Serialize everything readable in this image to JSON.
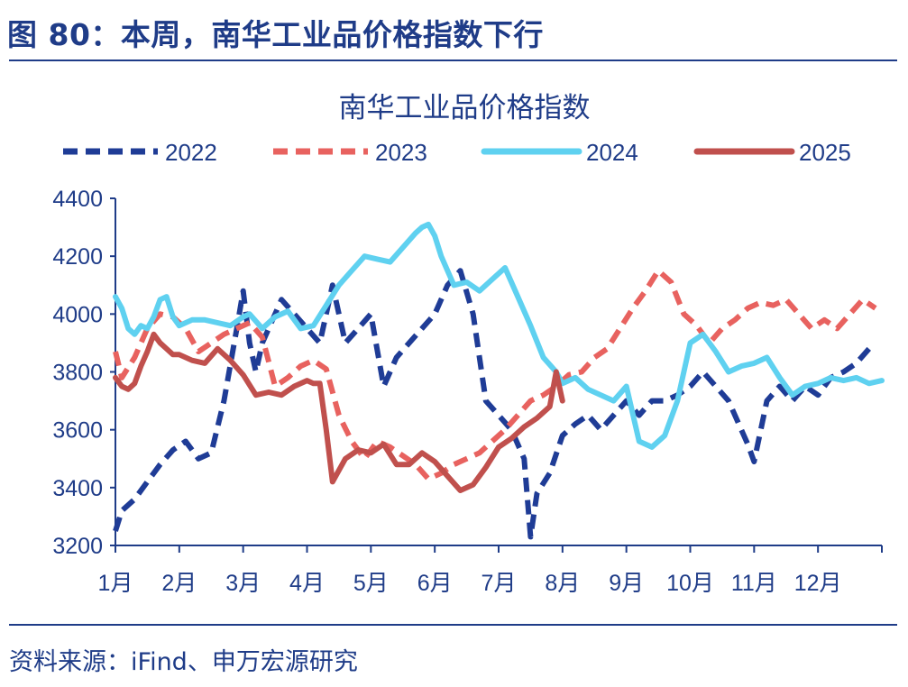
{
  "figure": {
    "title": "图 80：本周，南华工业品价格指数下行",
    "source": "资料来源：iFind、申万宏源研究",
    "accent_color": "#1f3c88"
  },
  "chart_data": {
    "type": "line",
    "title": "南华工业品价格指数",
    "xlabel": "",
    "ylabel": "",
    "ylim": [
      3200,
      4400
    ],
    "yticks": [
      3200,
      3400,
      3600,
      3800,
      4000,
      4200,
      4400
    ],
    "categories": [
      "1月",
      "2月",
      "3月",
      "4月",
      "5月",
      "6月",
      "7月",
      "8月",
      "9月",
      "10月",
      "11月",
      "12月"
    ],
    "legend_position": "top",
    "grid": false,
    "series": [
      {
        "name": "2022",
        "color": "#1f3c96",
        "style": "dashed",
        "x": [
          1.0,
          1.1,
          1.3,
          1.5,
          1.7,
          1.9,
          2.1,
          2.3,
          2.5,
          2.7,
          2.9,
          3.0,
          3.1,
          3.2,
          3.3,
          3.4,
          3.5,
          3.6,
          3.8,
          4.0,
          4.2,
          4.4,
          4.6,
          4.8,
          5.0,
          5.2,
          5.4,
          5.6,
          5.8,
          6.0,
          6.2,
          6.4,
          6.6,
          6.8,
          7.0,
          7.2,
          7.4,
          7.5,
          7.6,
          7.8,
          8.0,
          8.2,
          8.4,
          8.6,
          8.8,
          9.0,
          9.2,
          9.4,
          9.6,
          9.8,
          10.0,
          10.2,
          10.4,
          10.6,
          10.8,
          10.9,
          11.0,
          11.2,
          11.4,
          11.6,
          11.8,
          12.0,
          12.2,
          12.4,
          12.6,
          12.8
        ],
        "values": [
          3250,
          3320,
          3360,
          3420,
          3480,
          3530,
          3560,
          3500,
          3520,
          3700,
          3950,
          4080,
          3900,
          3800,
          3900,
          3950,
          4000,
          4050,
          4000,
          3950,
          3900,
          4100,
          3900,
          3950,
          4000,
          3750,
          3850,
          3900,
          3950,
          4000,
          4100,
          4150,
          4000,
          3700,
          3650,
          3600,
          3500,
          3230,
          3380,
          3450,
          3580,
          3620,
          3650,
          3600,
          3650,
          3700,
          3650,
          3700,
          3700,
          3720,
          3750,
          3800,
          3750,
          3700,
          3600,
          3550,
          3490,
          3700,
          3750,
          3700,
          3750,
          3720,
          3780,
          3800,
          3830,
          3880
        ]
      },
      {
        "name": "2023",
        "color": "#e8625f",
        "style": "dashed",
        "x": [
          1.0,
          1.1,
          1.3,
          1.5,
          1.7,
          1.9,
          2.1,
          2.3,
          2.5,
          2.7,
          2.9,
          3.1,
          3.3,
          3.5,
          3.7,
          3.9,
          4.1,
          4.3,
          4.5,
          4.7,
          4.9,
          5.1,
          5.3,
          5.5,
          5.7,
          5.9,
          6.1,
          6.3,
          6.5,
          6.7,
          6.9,
          7.1,
          7.3,
          7.5,
          7.7,
          7.9,
          8.1,
          8.3,
          8.5,
          8.7,
          8.9,
          9.1,
          9.3,
          9.5,
          9.7,
          9.9,
          10.1,
          10.3,
          10.5,
          10.7,
          10.9,
          11.1,
          11.3,
          11.5,
          11.7,
          11.9,
          12.1,
          12.3,
          12.5,
          12.7,
          12.9
        ],
        "values": [
          3870,
          3780,
          3850,
          3950,
          4000,
          3990,
          3950,
          3870,
          3900,
          3930,
          3950,
          3970,
          3920,
          3750,
          3780,
          3820,
          3840,
          3810,
          3650,
          3560,
          3500,
          3560,
          3540,
          3510,
          3480,
          3430,
          3450,
          3480,
          3500,
          3520,
          3560,
          3600,
          3650,
          3700,
          3720,
          3750,
          3790,
          3800,
          3850,
          3880,
          3950,
          4020,
          4080,
          4150,
          4110,
          4000,
          3960,
          3900,
          3950,
          3980,
          4020,
          4040,
          4030,
          4050,
          4000,
          3950,
          3980,
          3950,
          4000,
          4050,
          4020
        ]
      },
      {
        "name": "2024",
        "color": "#5fd1f0",
        "style": "solid",
        "x": [
          1.0,
          1.1,
          1.2,
          1.3,
          1.4,
          1.5,
          1.6,
          1.7,
          1.8,
          1.9,
          2.0,
          2.2,
          2.4,
          2.6,
          2.8,
          3.0,
          3.1,
          3.3,
          3.5,
          3.7,
          3.9,
          4.1,
          4.3,
          4.5,
          4.7,
          4.9,
          5.1,
          5.3,
          5.5,
          5.7,
          5.8,
          5.9,
          6.0,
          6.1,
          6.2,
          6.3,
          6.5,
          6.7,
          6.9,
          7.1,
          7.3,
          7.5,
          7.7,
          7.9,
          8.0,
          8.2,
          8.4,
          8.6,
          8.8,
          9.0,
          9.2,
          9.4,
          9.6,
          9.8,
          10.0,
          10.2,
          10.4,
          10.6,
          10.8,
          11.0,
          11.2,
          11.4,
          11.6,
          11.8,
          12.0,
          12.2,
          12.4,
          12.6,
          12.8,
          13.0
        ],
        "values": [
          4060,
          4020,
          3950,
          3930,
          3960,
          3950,
          3990,
          4050,
          4060,
          3990,
          3960,
          3980,
          3980,
          3970,
          3960,
          3990,
          4000,
          3950,
          3990,
          4010,
          3950,
          3960,
          4030,
          4100,
          4150,
          4200,
          4190,
          4180,
          4230,
          4280,
          4300,
          4310,
          4270,
          4200,
          4150,
          4100,
          4110,
          4080,
          4120,
          4160,
          4060,
          3960,
          3850,
          3800,
          3760,
          3780,
          3740,
          3720,
          3700,
          3750,
          3560,
          3540,
          3580,
          3700,
          3900,
          3930,
          3870,
          3800,
          3820,
          3830,
          3850,
          3780,
          3720,
          3750,
          3760,
          3780,
          3770,
          3780,
          3760,
          3770
        ]
      },
      {
        "name": "2025",
        "color": "#c0504d",
        "style": "solid",
        "x": [
          1.0,
          1.1,
          1.2,
          1.3,
          1.4,
          1.5,
          1.6,
          1.7,
          1.8,
          1.9,
          2.0,
          2.2,
          2.4,
          2.6,
          2.8,
          3.0,
          3.2,
          3.4,
          3.6,
          3.8,
          4.0,
          4.1,
          4.2,
          4.3,
          4.4,
          4.6,
          4.8,
          5.0,
          5.2,
          5.4,
          5.6,
          5.8,
          6.0,
          6.2,
          6.4,
          6.6,
          6.8,
          7.0,
          7.2,
          7.4,
          7.6,
          7.8,
          7.9,
          8.0
        ],
        "values": [
          3780,
          3750,
          3740,
          3760,
          3820,
          3870,
          3930,
          3900,
          3880,
          3860,
          3860,
          3840,
          3830,
          3880,
          3840,
          3790,
          3720,
          3730,
          3720,
          3750,
          3770,
          3760,
          3760,
          3600,
          3420,
          3500,
          3530,
          3520,
          3550,
          3480,
          3480,
          3520,
          3490,
          3440,
          3390,
          3410,
          3470,
          3540,
          3570,
          3610,
          3640,
          3680,
          3800,
          3700
        ]
      }
    ]
  }
}
